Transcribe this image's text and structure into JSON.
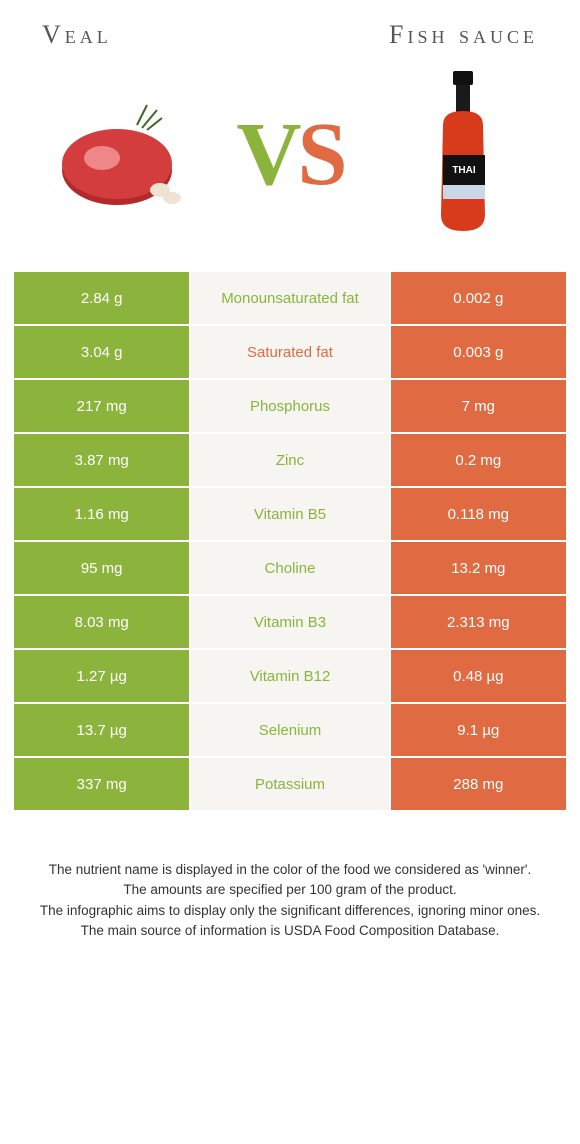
{
  "header": {
    "left_title": "Veal",
    "right_title": "Fish sauce",
    "vs_left_letter": "V",
    "vs_right_letter": "S"
  },
  "colors": {
    "left": "#8cb43c",
    "right": "#e06a42",
    "mid_bg": "#f6f5f2",
    "mid_text_default": "#888888"
  },
  "rows": [
    {
      "left": "2.84 g",
      "label": "Monounsaturated fat",
      "right": "0.002 g",
      "winner": "left"
    },
    {
      "left": "3.04 g",
      "label": "Saturated fat",
      "right": "0.003 g",
      "winner": "right"
    },
    {
      "left": "217 mg",
      "label": "Phosphorus",
      "right": "7 mg",
      "winner": "left"
    },
    {
      "left": "3.87 mg",
      "label": "Zinc",
      "right": "0.2 mg",
      "winner": "left"
    },
    {
      "left": "1.16 mg",
      "label": "Vitamin B5",
      "right": "0.118 mg",
      "winner": "left"
    },
    {
      "left": "95 mg",
      "label": "Choline",
      "right": "13.2 mg",
      "winner": "left"
    },
    {
      "left": "8.03 mg",
      "label": "Vitamin B3",
      "right": "2.313 mg",
      "winner": "left"
    },
    {
      "left": "1.27 µg",
      "label": "Vitamin B12",
      "right": "0.48 µg",
      "winner": "left"
    },
    {
      "left": "13.7 µg",
      "label": "Selenium",
      "right": "9.1 µg",
      "winner": "left"
    },
    {
      "left": "337 mg",
      "label": "Potassium",
      "right": "288 mg",
      "winner": "left"
    }
  ],
  "notes": [
    "The nutrient name is displayed in the color of the food we considered as 'winner'.",
    "The amounts are specified per 100 gram of the product.",
    "The infographic aims to display only the significant differences, ignoring minor ones.",
    "The main source of information is USDA Food Composition Database."
  ],
  "icons": {
    "left_food": "veal-meat-icon",
    "right_food": "fish-sauce-bottle-icon"
  }
}
